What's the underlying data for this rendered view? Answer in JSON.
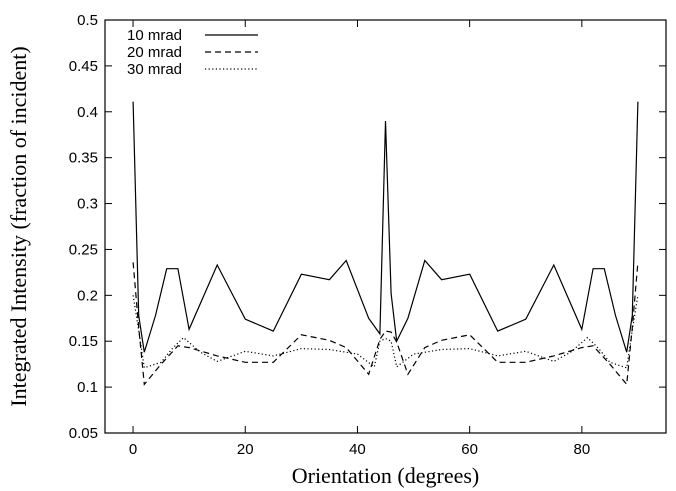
{
  "chart_data": {
    "type": "line",
    "xlabel": "Orientation (degrees)",
    "ylabel": "Integrated Intensity (fraction of incident)",
    "xlim": [
      -5,
      95
    ],
    "ylim": [
      0.05,
      0.5
    ],
    "x_ticks": [
      0,
      20,
      40,
      60,
      80
    ],
    "y_ticks": [
      0.05,
      0.1,
      0.15,
      0.2,
      0.25,
      0.3,
      0.35,
      0.4,
      0.45,
      0.5
    ],
    "x_tick_labels": [
      "0",
      "20",
      "40",
      "60",
      "80"
    ],
    "y_tick_labels": [
      "0.05",
      "0.1",
      "0.15",
      "0.2",
      "0.25",
      "0.3",
      "0.35",
      "0.4",
      "0.45",
      "0.5"
    ],
    "legend_position": "top-left",
    "grid": false,
    "series": [
      {
        "name": "10 mrad",
        "dash": "solid",
        "points": [
          [
            0,
            0.411
          ],
          [
            1,
            0.178
          ],
          [
            2,
            0.138
          ],
          [
            4,
            0.178
          ],
          [
            6,
            0.229
          ],
          [
            8,
            0.229
          ],
          [
            10,
            0.163
          ],
          [
            15,
            0.233
          ],
          [
            20,
            0.174
          ],
          [
            25,
            0.161
          ],
          [
            30,
            0.223
          ],
          [
            35,
            0.217
          ],
          [
            38,
            0.238
          ],
          [
            42,
            0.175
          ],
          [
            44,
            0.158
          ],
          [
            45,
            0.39
          ],
          [
            46,
            0.202
          ],
          [
            47,
            0.15
          ],
          [
            49,
            0.175
          ],
          [
            52,
            0.238
          ],
          [
            55,
            0.217
          ],
          [
            60,
            0.223
          ],
          [
            65,
            0.161
          ],
          [
            70,
            0.174
          ],
          [
            75,
            0.233
          ],
          [
            80,
            0.163
          ],
          [
            82,
            0.229
          ],
          [
            84,
            0.229
          ],
          [
            86,
            0.178
          ],
          [
            88,
            0.138
          ],
          [
            89,
            0.178
          ],
          [
            90,
            0.411
          ]
        ]
      },
      {
        "name": "20 mrad",
        "dash": "dashed",
        "points": [
          [
            0,
            0.236
          ],
          [
            1,
            0.165
          ],
          [
            2,
            0.103
          ],
          [
            5,
            0.125
          ],
          [
            8,
            0.145
          ],
          [
            10,
            0.143
          ],
          [
            15,
            0.134
          ],
          [
            20,
            0.127
          ],
          [
            25,
            0.127
          ],
          [
            30,
            0.157
          ],
          [
            35,
            0.151
          ],
          [
            38,
            0.143
          ],
          [
            42,
            0.114
          ],
          [
            44,
            0.152
          ],
          [
            45,
            0.161
          ],
          [
            46,
            0.16
          ],
          [
            47,
            0.149
          ],
          [
            49,
            0.114
          ],
          [
            52,
            0.143
          ],
          [
            55,
            0.151
          ],
          [
            60,
            0.157
          ],
          [
            65,
            0.127
          ],
          [
            70,
            0.127
          ],
          [
            75,
            0.134
          ],
          [
            80,
            0.143
          ],
          [
            82,
            0.145
          ],
          [
            85,
            0.125
          ],
          [
            88,
            0.103
          ],
          [
            89,
            0.165
          ],
          [
            90,
            0.236
          ]
        ]
      },
      {
        "name": "30 mrad",
        "dash": "dotted",
        "points": [
          [
            0,
            0.2
          ],
          [
            1,
            0.162
          ],
          [
            2,
            0.121
          ],
          [
            5,
            0.127
          ],
          [
            7,
            0.142
          ],
          [
            9,
            0.154
          ],
          [
            12,
            0.138
          ],
          [
            15,
            0.128
          ],
          [
            20,
            0.139
          ],
          [
            25,
            0.134
          ],
          [
            30,
            0.142
          ],
          [
            35,
            0.141
          ],
          [
            40,
            0.136
          ],
          [
            43,
            0.122
          ],
          [
            44,
            0.15
          ],
          [
            45,
            0.153
          ],
          [
            46,
            0.15
          ],
          [
            47,
            0.122
          ],
          [
            50,
            0.136
          ],
          [
            55,
            0.141
          ],
          [
            60,
            0.142
          ],
          [
            65,
            0.134
          ],
          [
            70,
            0.139
          ],
          [
            75,
            0.128
          ],
          [
            78,
            0.138
          ],
          [
            81,
            0.154
          ],
          [
            83,
            0.142
          ],
          [
            85,
            0.127
          ],
          [
            88,
            0.121
          ],
          [
            89,
            0.162
          ],
          [
            90,
            0.2
          ]
        ]
      }
    ]
  }
}
